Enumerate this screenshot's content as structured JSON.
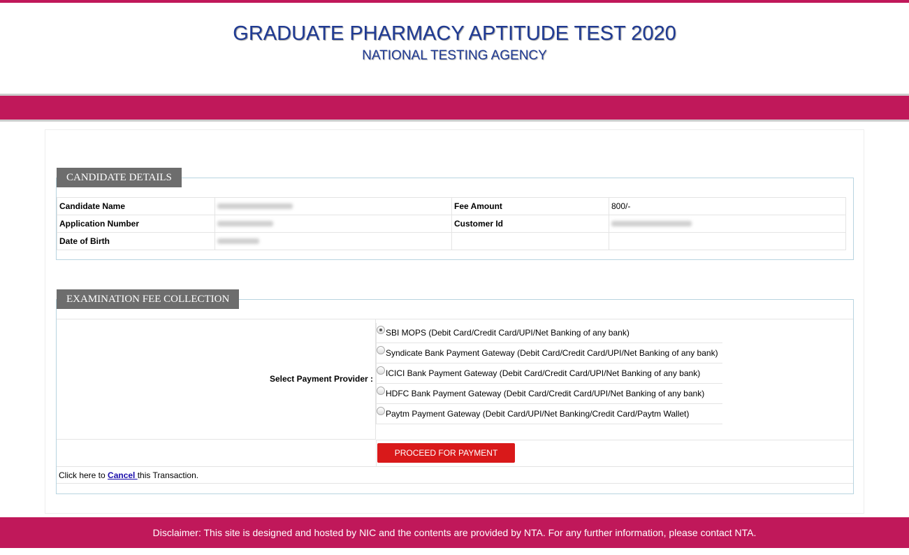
{
  "header": {
    "title": "GRADUATE PHARMACY APTITUDE TEST 2020",
    "subtitle": "NATIONAL TESTING AGENCY"
  },
  "candidate": {
    "legend": "CANDIDATE DETAILS",
    "name_label": "Candidate Name",
    "app_label": "Application Number",
    "dob_label": "Date of Birth",
    "fee_label": "Fee Amount",
    "fee_value": "800/-",
    "customer_label": "Customer Id"
  },
  "fee": {
    "legend": "EXAMINATION FEE COLLECTION",
    "select_label": "Select Payment Provider :",
    "options": [
      {
        "label": "SBI MOPS (Debit Card/Credit Card/UPI/Net Banking of any bank)",
        "selected": true
      },
      {
        "label": "Syndicate Bank Payment Gateway (Debit Card/Credit Card/UPI/Net Banking of any bank)",
        "selected": false
      },
      {
        "label": "ICICI Bank Payment Gateway (Debit Card/Credit Card/UPI/Net Banking of any bank)",
        "selected": false
      },
      {
        "label": "HDFC Bank Payment Gateway (Debit Card/Credit Card/UPI/Net Banking of any bank)",
        "selected": false
      },
      {
        "label": "Paytm Payment Gateway (Debit Card/UPI/Net Banking/Credit Card/Paytm Wallet)",
        "selected": false
      }
    ],
    "proceed": "PROCEED FOR PAYMENT",
    "cancel_pre": "Click here to ",
    "cancel_link": "Cancel ",
    "cancel_post": "this Transaction."
  },
  "footer": {
    "disclaimer": "Disclaimer: This site is designed and hosted by NIC and the contents are provided by NTA. For any further information, please contact NTA."
  },
  "colors": {
    "brand": "#c0185a",
    "title": "#1f3a93",
    "button": "#d9191a",
    "legend": "#6d6d6d"
  }
}
